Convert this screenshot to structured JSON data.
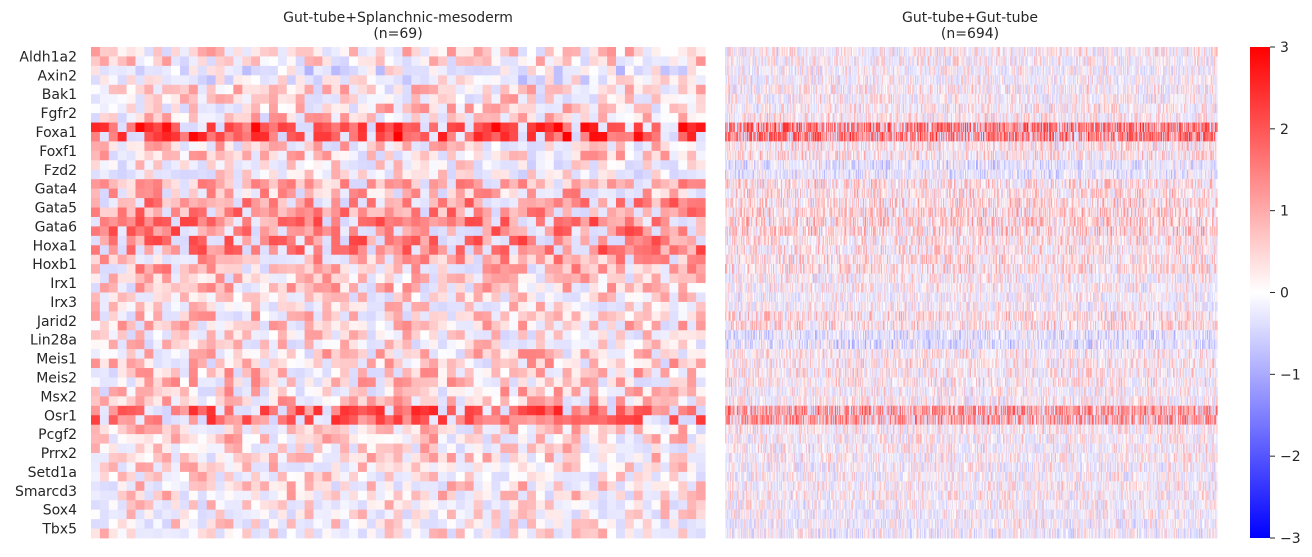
{
  "chart_data": [
    {
      "type": "heatmap",
      "title": "Gut-tube+Splanchnic-mesoderm",
      "subtitle": "(n=69)",
      "n_columns": 69,
      "colormap": "bwr",
      "vmin": -3,
      "vmax": 3,
      "rows": [
        "Aldh1a2",
        "Axin2",
        "Bak1",
        "Fgfr2",
        "Foxa1",
        "Foxf1",
        "Fzd2",
        "Gata4",
        "Gata5",
        "Gata6",
        "Hoxa1",
        "Hoxb1",
        "Irx1",
        "Irx3",
        "Jarid2",
        "Lin28a",
        "Meis1",
        "Meis2",
        "Msx2",
        "Osr1",
        "Pcgf2",
        "Prrx2",
        "Setd1a",
        "Smarcd3",
        "Sox4",
        "Tbx5"
      ],
      "typical_row_levels": [
        0.5,
        -0.1,
        0.5,
        0.6,
        2.2,
        0.6,
        0.2,
        0.9,
        1.3,
        1.5,
        1.5,
        1.0,
        0.7,
        0.4,
        0.6,
        0.4,
        0.7,
        0.7,
        0.7,
        1.8,
        0.6,
        0.5,
        0.4,
        0.5,
        0.3,
        0.3
      ]
    },
    {
      "type": "heatmap",
      "title": "Gut-tube+Gut-tube",
      "subtitle": "(n=694)",
      "n_columns": 694,
      "colormap": "bwr",
      "vmin": -3,
      "vmax": 3,
      "rows": [
        "Aldh1a2",
        "Axin2",
        "Bak1",
        "Fgfr2",
        "Foxa1",
        "Foxf1",
        "Fzd2",
        "Gata4",
        "Gata5",
        "Gata6",
        "Hoxa1",
        "Hoxb1",
        "Irx1",
        "Irx3",
        "Jarid2",
        "Lin28a",
        "Meis1",
        "Meis2",
        "Msx2",
        "Osr1",
        "Pcgf2",
        "Prrx2",
        "Setd1a",
        "Smarcd3",
        "Sox4",
        "Tbx5"
      ],
      "typical_row_levels": [
        0.2,
        0.1,
        0.2,
        0.3,
        1.8,
        0.4,
        -0.2,
        0.5,
        0.6,
        0.7,
        0.4,
        0.5,
        0.2,
        0.1,
        0.5,
        -0.3,
        0.3,
        0.3,
        0.2,
        1.4,
        0.2,
        0.2,
        0.1,
        0.2,
        0.1,
        0.0
      ]
    }
  ],
  "colorbar": {
    "ticks": [
      "3",
      "2",
      "1",
      "0",
      "−1",
      "−2",
      "−3"
    ],
    "tick_values": [
      3,
      2,
      1,
      0,
      -1,
      -2,
      -3
    ],
    "min": -3,
    "max": 3
  }
}
